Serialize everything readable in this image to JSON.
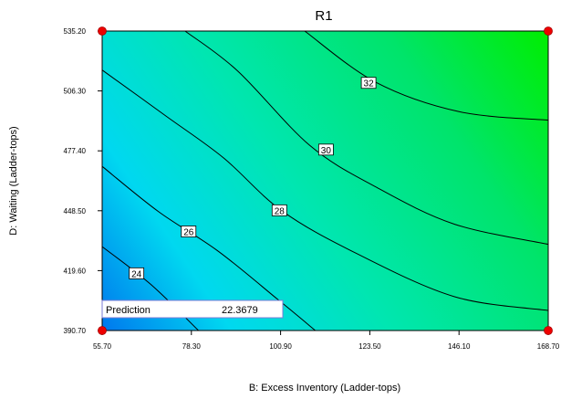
{
  "chart_data": {
    "type": "contour",
    "title": "R1",
    "xlabel": "B: Excess Inventory (Ladder-tops)",
    "ylabel": "D: Waiting (Ladder-tops)",
    "xlim": [
      55.7,
      168.7
    ],
    "ylim": [
      390.7,
      535.2
    ],
    "x_ticks": [
      "55.70",
      "78.30",
      "100.90",
      "123.50",
      "146.10",
      "168.70"
    ],
    "y_ticks": [
      "390.70",
      "419.60",
      "448.50",
      "477.40",
      "506.30",
      "535.20"
    ],
    "contours": [
      {
        "level": "24",
        "points": [
          [
            55.7,
            431.2
          ],
          [
            68.0,
            413.0
          ],
          [
            80.1,
            390.7
          ]
        ],
        "label_at": [
          64.4,
          418.3
        ]
      },
      {
        "level": "26",
        "points": [
          [
            55.7,
            469.9
          ],
          [
            70.0,
            448.0
          ],
          [
            84.8,
            429.4
          ],
          [
            100.0,
            406.0
          ],
          [
            109.7,
            390.7
          ]
        ],
        "label_at": [
          77.6,
          438.5
        ]
      },
      {
        "level": "28",
        "points": [
          [
            55.7,
            516.4
          ],
          [
            72.0,
            494.0
          ],
          [
            86.5,
            473.9
          ],
          [
            101.2,
            448.5
          ],
          [
            120.0,
            428.0
          ],
          [
            145.0,
            407.0
          ],
          [
            168.7,
            400.4
          ]
        ],
        "label_at": [
          100.6,
          448.7
        ]
      },
      {
        "level": "30",
        "points": [
          [
            76.7,
            535.2
          ],
          [
            90.0,
            516.0
          ],
          [
            108.3,
            480.0
          ],
          [
            125.0,
            460.0
          ],
          [
            145.0,
            442.0
          ],
          [
            168.7,
            432.3
          ]
        ],
        "label_at": [
          112.4,
          478.0
        ]
      },
      {
        "level": "32",
        "points": [
          [
            107.0,
            535.2
          ],
          [
            125.0,
            510.5
          ],
          [
            146.1,
            496.3
          ],
          [
            168.7,
            492.2
          ]
        ],
        "label_at": [
          123.2,
          510.2
        ]
      }
    ],
    "design_points": [
      [
        55.7,
        390.7
      ],
      [
        168.7,
        390.7
      ],
      [
        55.7,
        535.2
      ],
      [
        168.7,
        535.2
      ]
    ],
    "colors": {
      "low": "#0077ee",
      "high": "#00ee00",
      "contour": "#000000",
      "point": "#ee0000"
    }
  },
  "prediction": {
    "label": "Prediction",
    "value": "22.3679"
  }
}
